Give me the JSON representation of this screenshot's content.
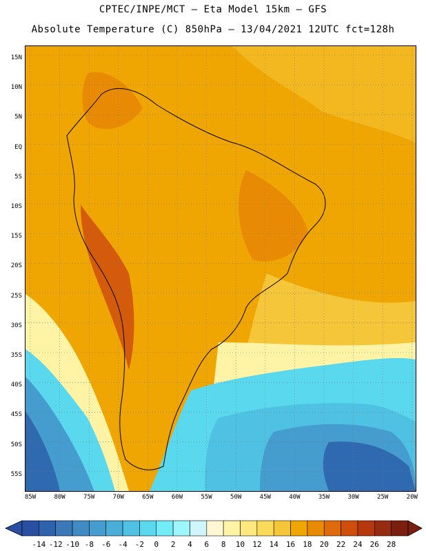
{
  "title_line1": "CPTEC/INPE/MCT —  Eta Model 15km — GFS",
  "title_line2": "Absolute Temperature (C) 850hPa — 13/04/2021 12UTC fct=128h",
  "lat_labels": [
    "15N",
    "10N",
    "5N",
    "EQ",
    "5S",
    "10S",
    "15S",
    "20S",
    "25S",
    "30S",
    "35S",
    "40S",
    "45S",
    "50S",
    "55S"
  ],
  "lon_labels": [
    "85W",
    "80W",
    "75W",
    "70W",
    "65W",
    "60W",
    "55W",
    "50W",
    "45W",
    "40W",
    "35W",
    "30W",
    "25W",
    "20W"
  ],
  "colorbar": {
    "labels": [
      "-14",
      "-12",
      "-10",
      "-8",
      "-6",
      "-4",
      "-2",
      "0",
      "2",
      "4",
      "6",
      "8",
      "10",
      "12",
      "14",
      "16",
      "18",
      "20",
      "22",
      "24",
      "26",
      "28"
    ],
    "colors": [
      "#2a4ea1",
      "#2f62ac",
      "#3a78b8",
      "#3f8bc4",
      "#449ccf",
      "#4aaed9",
      "#4fc2e3",
      "#5ad8ee",
      "#72ecf8",
      "#9ef6fd",
      "#cff7fb",
      "#fff7d4",
      "#fff3a6",
      "#ffe97e",
      "#fadb58",
      "#f6c63a",
      "#efa602",
      "#e98a05",
      "#df6a0c",
      "#cf4e0d",
      "#b5380f",
      "#962b10",
      "#7a1f0f"
    ]
  },
  "field_colors": {
    "deep_cold": "#2f6ab0",
    "cold": "#449ccf",
    "cool": "#4fc2e3",
    "light": "#5ad8ee",
    "pale": "#9ef6fd",
    "cream": "#fff3a6",
    "yellow": "#f6c63a",
    "base": "#efa602",
    "warm": "#e98a05",
    "hot": "#cf4e0d",
    "land_border": "#000000"
  }
}
